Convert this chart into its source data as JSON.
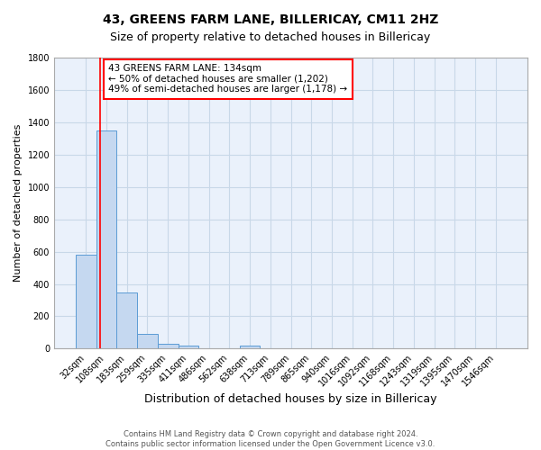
{
  "title": "43, GREENS FARM LANE, BILLERICAY, CM11 2HZ",
  "subtitle": "Size of property relative to detached houses in Billericay",
  "xlabel": "Distribution of detached houses by size in Billericay",
  "ylabel": "Number of detached properties",
  "footer_line1": "Contains HM Land Registry data © Crown copyright and database right 2024.",
  "footer_line2": "Contains public sector information licensed under the Open Government Licence v3.0.",
  "bin_labels": [
    "32sqm",
    "108sqm",
    "183sqm",
    "259sqm",
    "335sqm",
    "411sqm",
    "486sqm",
    "562sqm",
    "638sqm",
    "713sqm",
    "789sqm",
    "865sqm",
    "940sqm",
    "1016sqm",
    "1092sqm",
    "1168sqm",
    "1243sqm",
    "1319sqm",
    "1395sqm",
    "1470sqm",
    "1546sqm"
  ],
  "bar_values": [
    580,
    1350,
    350,
    90,
    28,
    18,
    0,
    0,
    18,
    0,
    0,
    0,
    0,
    0,
    0,
    0,
    0,
    0,
    0,
    0,
    0
  ],
  "bar_color": "#c5d8f0",
  "bar_edge_color": "#5b9bd5",
  "red_line_x": 0.68,
  "annotation_text": "43 GREENS FARM LANE: 134sqm\n← 50% of detached houses are smaller (1,202)\n49% of semi-detached houses are larger (1,178) →",
  "annotation_box_color": "white",
  "annotation_box_edge_color": "red",
  "ylim": [
    0,
    1800
  ],
  "yticks": [
    0,
    200,
    400,
    600,
    800,
    1000,
    1200,
    1400,
    1600,
    1800
  ],
  "background_color": "#eaf1fb",
  "grid_color": "#c8d8e8",
  "title_fontsize": 10,
  "subtitle_fontsize": 9,
  "xlabel_fontsize": 9,
  "ylabel_fontsize": 8,
  "tick_fontsize": 7,
  "annotation_fontsize": 7.5,
  "figwidth": 6.0,
  "figheight": 5.0,
  "dpi": 100
}
